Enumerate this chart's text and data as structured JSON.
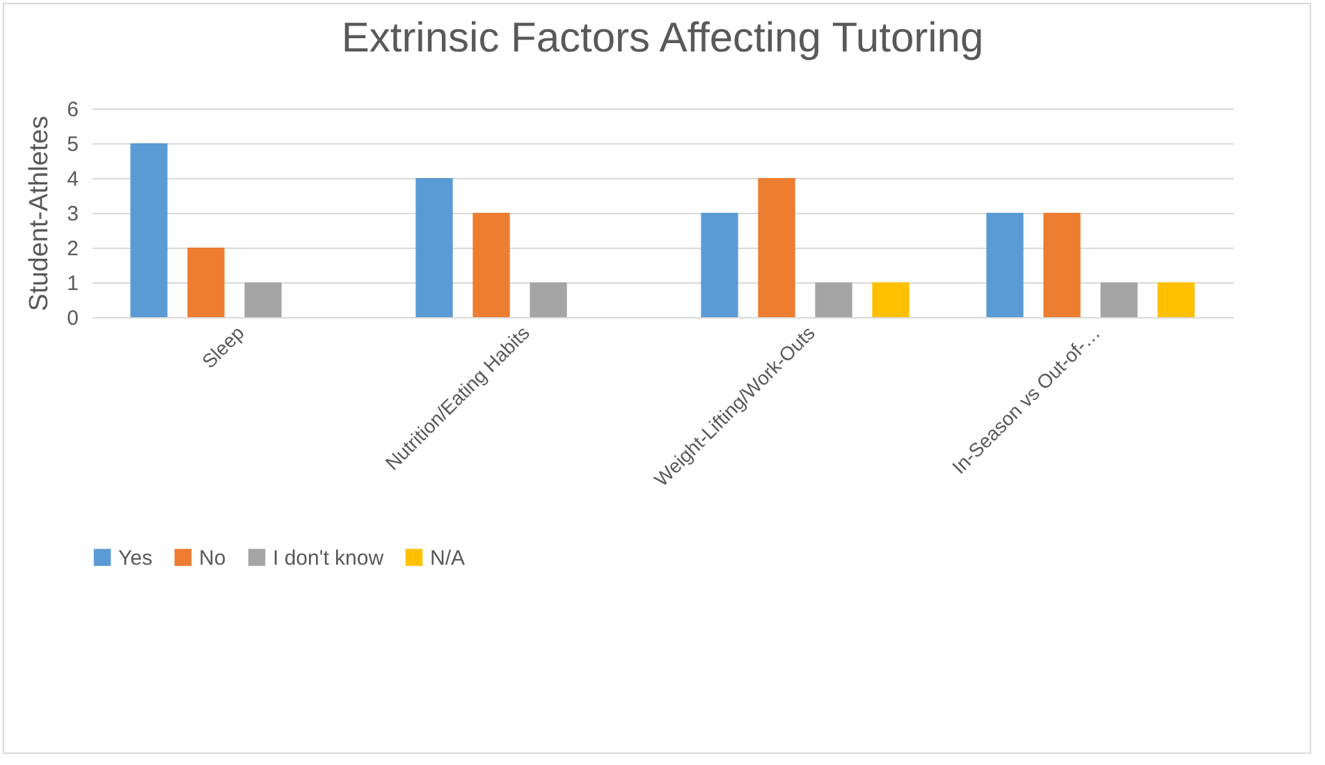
{
  "chart_data": {
    "type": "bar",
    "title": "Extrinsic Factors Affecting Tutoring",
    "ylabel": "Student-Athletes",
    "categories": [
      "Sleep",
      "Nutrition/Eating Habits",
      "Weight-Lifting/Work-Outs",
      "In-Season vs Out-of-…"
    ],
    "series": [
      {
        "name": "Yes",
        "color": "#5b9bd5",
        "values": [
          5,
          4,
          3,
          3
        ]
      },
      {
        "name": "No",
        "color": "#ed7d31",
        "values": [
          2,
          3,
          4,
          3
        ]
      },
      {
        "name": "I don't know",
        "color": "#a5a5a5",
        "values": [
          1,
          1,
          1,
          1
        ]
      },
      {
        "name": "N/A",
        "color": "#ffc000",
        "values": [
          null,
          null,
          1,
          1
        ]
      }
    ],
    "ylim": [
      0,
      6
    ],
    "yticks": [
      0,
      1,
      2,
      3,
      4,
      5,
      6
    ],
    "grid": "y",
    "legend": "bottom"
  }
}
